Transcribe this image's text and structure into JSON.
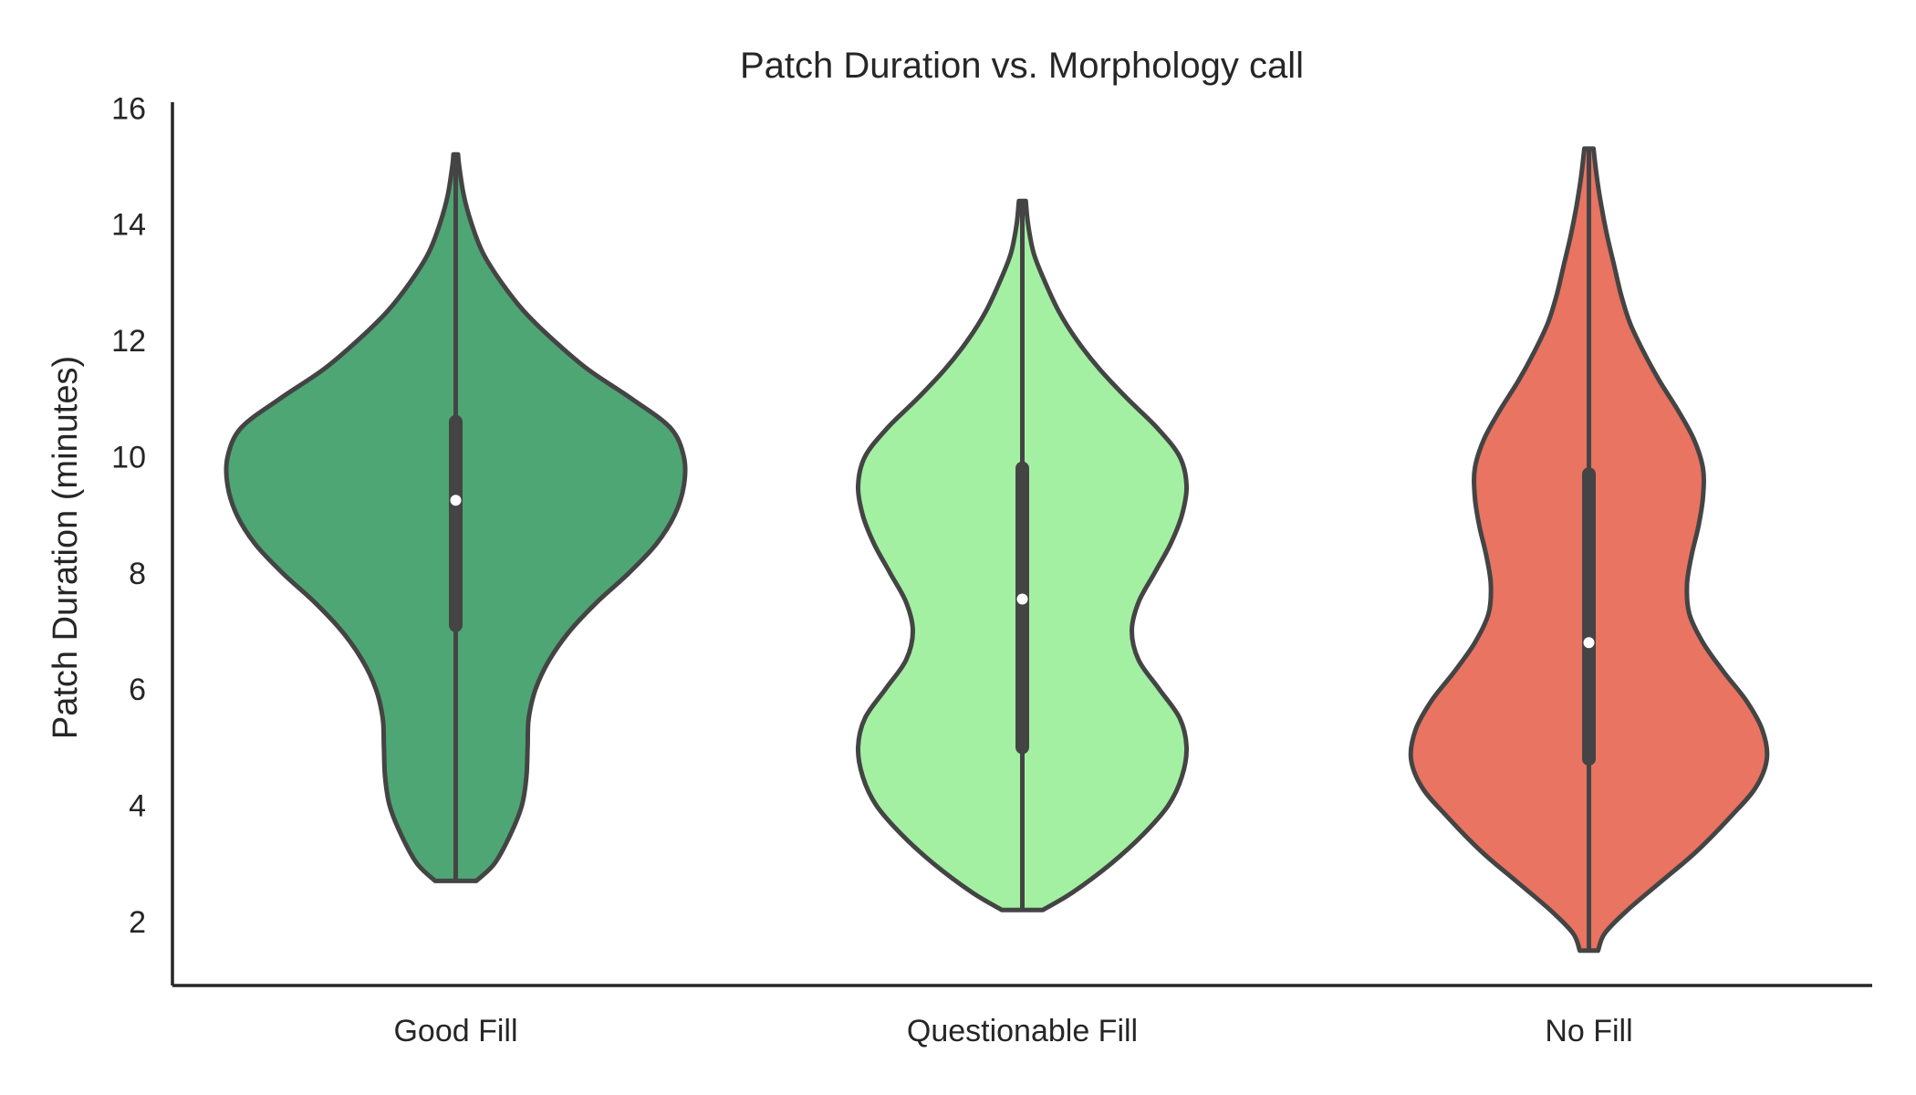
{
  "chart_data": {
    "type": "violin",
    "title": "Patch Duration vs. Morphology call",
    "xlabel": "",
    "ylabel": "Patch Duration (minutes)",
    "ylim": [
      0.9,
      16.1
    ],
    "yticks": [
      2,
      4,
      6,
      8,
      10,
      12,
      14,
      16
    ],
    "categories": [
      "Good Fill",
      "Questionable Fill",
      "No Fill"
    ],
    "colors": {
      "Good Fill": "#4ea674",
      "Questionable Fill": "#a3f0a3",
      "No Fill": "#e87461",
      "outline": "#444444",
      "axis": "#262626"
    },
    "grid": false,
    "legend": "none",
    "series": [
      {
        "category": "Good Fill",
        "min": 2.7,
        "max": 15.2,
        "q1": 7.1,
        "median": 9.25,
        "q3": 10.6,
        "density": [
          [
            2.7,
            0.09
          ],
          [
            3.0,
            0.17
          ],
          [
            3.5,
            0.24
          ],
          [
            4.0,
            0.29
          ],
          [
            4.5,
            0.31
          ],
          [
            5.0,
            0.315
          ],
          [
            5.5,
            0.32
          ],
          [
            6.0,
            0.35
          ],
          [
            6.5,
            0.41
          ],
          [
            7.0,
            0.5
          ],
          [
            7.5,
            0.62
          ],
          [
            8.0,
            0.76
          ],
          [
            8.5,
            0.88
          ],
          [
            9.0,
            0.96
          ],
          [
            9.5,
            1.0
          ],
          [
            10.0,
            1.0
          ],
          [
            10.5,
            0.94
          ],
          [
            11.0,
            0.77
          ],
          [
            11.5,
            0.58
          ],
          [
            12.0,
            0.43
          ],
          [
            12.5,
            0.3
          ],
          [
            13.0,
            0.2
          ],
          [
            13.5,
            0.12
          ],
          [
            14.0,
            0.07
          ],
          [
            14.5,
            0.035
          ],
          [
            15.0,
            0.015
          ],
          [
            15.2,
            0.01
          ]
        ]
      },
      {
        "category": "Questionable Fill",
        "min": 2.2,
        "max": 14.4,
        "q1": 5.0,
        "median": 7.55,
        "q3": 9.8,
        "density": [
          [
            2.2,
            0.09
          ],
          [
            2.5,
            0.22
          ],
          [
            3.0,
            0.39
          ],
          [
            3.5,
            0.53
          ],
          [
            4.0,
            0.64
          ],
          [
            4.5,
            0.7
          ],
          [
            5.0,
            0.72
          ],
          [
            5.5,
            0.69
          ],
          [
            6.0,
            0.6
          ],
          [
            6.5,
            0.51
          ],
          [
            7.0,
            0.48
          ],
          [
            7.5,
            0.51
          ],
          [
            8.0,
            0.58
          ],
          [
            8.5,
            0.65
          ],
          [
            9.0,
            0.7
          ],
          [
            9.5,
            0.72
          ],
          [
            10.0,
            0.69
          ],
          [
            10.5,
            0.59
          ],
          [
            11.0,
            0.46
          ],
          [
            11.5,
            0.34
          ],
          [
            12.0,
            0.24
          ],
          [
            12.5,
            0.16
          ],
          [
            13.0,
            0.1
          ],
          [
            13.5,
            0.05
          ],
          [
            14.0,
            0.025
          ],
          [
            14.4,
            0.015
          ]
        ]
      },
      {
        "category": "No Fill",
        "min": 1.5,
        "max": 15.3,
        "q1": 4.8,
        "median": 6.8,
        "q3": 9.7,
        "density": [
          [
            1.5,
            0.04
          ],
          [
            1.8,
            0.07
          ],
          [
            2.2,
            0.17
          ],
          [
            2.7,
            0.32
          ],
          [
            3.2,
            0.47
          ],
          [
            3.8,
            0.62
          ],
          [
            4.3,
            0.73
          ],
          [
            4.8,
            0.78
          ],
          [
            5.3,
            0.76
          ],
          [
            5.8,
            0.69
          ],
          [
            6.3,
            0.59
          ],
          [
            6.8,
            0.5
          ],
          [
            7.3,
            0.44
          ],
          [
            7.8,
            0.43
          ],
          [
            8.3,
            0.45
          ],
          [
            8.8,
            0.48
          ],
          [
            9.3,
            0.5
          ],
          [
            9.8,
            0.5
          ],
          [
            10.3,
            0.46
          ],
          [
            10.8,
            0.39
          ],
          [
            11.3,
            0.31
          ],
          [
            11.8,
            0.24
          ],
          [
            12.3,
            0.18
          ],
          [
            12.8,
            0.14
          ],
          [
            13.3,
            0.11
          ],
          [
            13.8,
            0.08
          ],
          [
            14.3,
            0.055
          ],
          [
            14.8,
            0.035
          ],
          [
            15.3,
            0.02
          ]
        ]
      }
    ]
  }
}
